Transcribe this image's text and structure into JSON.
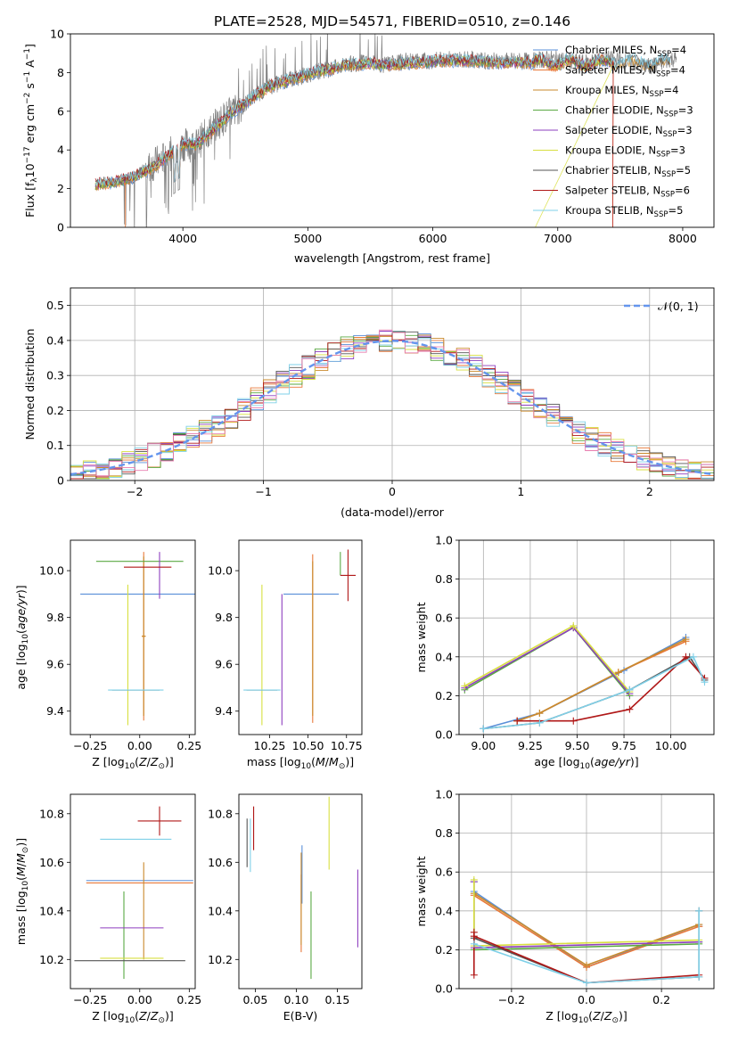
{
  "figure_title": "PLATE=2528, MJD=54571, FIBERID=0510, z=0.146",
  "colors": {
    "chabrier_miles": "#5a8fd8",
    "salpeter_miles": "#e8793a",
    "kroupa_miles": "#c98a2c",
    "chabrier_elodie": "#5aa843",
    "salpeter_elodie": "#8e3fbf",
    "kroupa_elodie": "#d8df40",
    "chabrier_stelib": "#555555",
    "salpeter_stelib": "#b01818",
    "kroupa_stelib": "#7fd0e8",
    "normal": "#6495ed",
    "grid": "#b0b0b0"
  },
  "chart_data": [
    {
      "id": "spectrum",
      "type": "line",
      "xlabel": "wavelength [Angstrom, rest frame]",
      "ylabel": "Flux [f_λ10^-17 erg cm^-2 s^-1 A^-1]",
      "xlim": [
        3100,
        8250
      ],
      "ylim": [
        0,
        10
      ],
      "xticks": [
        4000,
        5000,
        6000,
        7000,
        8000
      ],
      "yticks": [
        0,
        2,
        4,
        6,
        8,
        10
      ],
      "grid": false,
      "legend": "top-right",
      "legend_entries": [
        {
          "label": "Chabrier MILES, N",
          "sub": "SSP",
          "suffix": "=4",
          "color_key": "chabrier_miles"
        },
        {
          "label": "Salpeter MILES, N",
          "sub": "SSP",
          "suffix": "=4",
          "color_key": "salpeter_miles"
        },
        {
          "label": "Kroupa MILES, N",
          "sub": "SSP",
          "suffix": "=4",
          "color_key": "kroupa_miles"
        },
        {
          "label": "Chabrier ELODIE, N",
          "sub": "SSP",
          "suffix": "=3",
          "color_key": "chabrier_elodie"
        },
        {
          "label": "Salpeter ELODIE, N",
          "sub": "SSP",
          "suffix": "=3",
          "color_key": "salpeter_elodie"
        },
        {
          "label": "Kroupa ELODIE, N",
          "sub": "SSP",
          "suffix": "=3",
          "color_key": "kroupa_elodie"
        },
        {
          "label": "Chabrier STELIB, N",
          "sub": "SSP",
          "suffix": "=5",
          "color_key": "chabrier_stelib"
        },
        {
          "label": "Salpeter STELIB, N",
          "sub": "SSP",
          "suffix": "=6",
          "color_key": "salpeter_stelib"
        },
        {
          "label": "Kroupa STELIB, N",
          "sub": "SSP",
          "suffix": "=5",
          "color_key": "kroupa_stelib"
        }
      ],
      "data_curve": {
        "color": "#808080",
        "x": [
          3300,
          3400,
          3500,
          3600,
          3700,
          3800,
          3900,
          4000,
          4100,
          4200,
          4300,
          4400,
          4500,
          4600,
          4700,
          4800,
          4900,
          5000,
          5100,
          5200,
          5300,
          5400,
          5500,
          5600,
          5700,
          5800,
          5900,
          6000,
          6100,
          6200,
          6300,
          6400,
          6500,
          6600,
          6700,
          6800,
          6900,
          7000,
          7100,
          7200,
          7300,
          7400,
          7500,
          7600,
          7700,
          7800,
          7900
        ],
        "y": [
          2.2,
          2.3,
          2.4,
          2.6,
          3.0,
          3.4,
          3.8,
          4.3,
          4.2,
          4.9,
          5.5,
          6.0,
          6.4,
          6.9,
          7.3,
          7.5,
          7.7,
          7.9,
          8.1,
          8.2,
          8.4,
          8.5,
          8.5,
          8.4,
          8.5,
          8.6,
          8.6,
          8.6,
          8.7,
          8.7,
          8.7,
          8.6,
          8.6,
          8.6,
          8.6,
          8.6,
          8.7,
          8.7,
          8.6,
          8.5,
          8.6,
          8.7,
          8.6,
          8.5,
          8.3,
          8.4,
          8.7
        ]
      },
      "model_curve": {
        "x": [
          3300,
          3400,
          3500,
          3600,
          3700,
          3800,
          3900,
          4000,
          4100,
          4200,
          4300,
          4400,
          4500,
          4600,
          4700,
          4800,
          4900,
          5000,
          5100,
          5200,
          5300,
          5400,
          5500,
          5600,
          5700,
          5800,
          5900,
          6000,
          6100,
          6200,
          6300,
          6400,
          6500,
          6600,
          6700,
          6800
        ],
        "y": [
          2.2,
          2.3,
          2.4,
          2.6,
          2.9,
          3.3,
          3.8,
          4.3,
          4.3,
          4.8,
          5.4,
          6.0,
          6.4,
          6.9,
          7.3,
          7.5,
          7.7,
          7.9,
          8.1,
          8.2,
          8.4,
          8.4,
          8.5,
          8.4,
          8.4,
          8.5,
          8.5,
          8.6,
          8.6,
          8.6,
          8.6,
          8.6,
          8.5,
          8.5,
          8.5,
          8.5
        ]
      }
    },
    {
      "id": "residuals",
      "type": "histogram",
      "xlabel": "(data-model)/error",
      "ylabel": "Normed distribution",
      "xlim": [
        -2.5,
        2.5
      ],
      "ylim": [
        0,
        0.55
      ],
      "xticks": [
        -2,
        -1,
        0,
        1,
        2
      ],
      "yticks": [
        0.0,
        0.1,
        0.2,
        0.3,
        0.4,
        0.5
      ],
      "grid": true,
      "legend": "top-right",
      "legend_entries": [
        {
          "label": "𝒩(0, 1)",
          "color_key": "normal"
        }
      ],
      "bin_edges_start": -2.5,
      "bin_width": 0.1
    },
    {
      "id": "age_vs_Z",
      "type": "errorbar",
      "xlabel": "Z [log10(Z/Z⊙)]",
      "ylabel": "age [log10(age/yr)]",
      "xlim": [
        -0.35,
        0.28
      ],
      "ylim": [
        9.3,
        10.13
      ],
      "xticks": [
        -0.25,
        0.0,
        0.25
      ],
      "xticklabels": [
        "−0.25",
        "0.00",
        "0.25"
      ],
      "yticks": [
        9.4,
        9.6,
        9.8,
        10.0
      ],
      "yticklabels": [
        "9.4",
        "9.6",
        "9.8",
        "10.0"
      ],
      "grid": false,
      "points": [
        {
          "color_key": "chabrier_miles",
          "x": 0.0,
          "xerr": 0.3,
          "y": 9.9,
          "yerr": 0.0
        },
        {
          "color_key": "salpeter_miles",
          "x": 0.02,
          "xerr": 0.01,
          "y": 9.72,
          "yerr": 0.36
        },
        {
          "color_key": "kroupa_miles",
          "x": 0.02,
          "xerr": 0.01,
          "y": 9.72,
          "yerr": 0.34
        },
        {
          "color_key": "chabrier_elodie",
          "x": 0.0,
          "xerr": 0.22,
          "y": 10.04,
          "yerr": 0.0
        },
        {
          "color_key": "salpeter_elodie",
          "x": 0.1,
          "xerr": 0.0,
          "y": 9.98,
          "yerr": 0.1
        },
        {
          "color_key": "kroupa_elodie",
          "x": -0.06,
          "xerr": 0.0,
          "y": 9.64,
          "yerr": 0.3
        },
        {
          "color_key": "chabrier_stelib",
          "x": -0.02,
          "xerr": 0.12,
          "y": 9.49,
          "yerr": 0.0
        },
        {
          "color_key": "salpeter_stelib",
          "x": 0.04,
          "xerr": 0.12,
          "y": 10.015,
          "yerr": 0.0
        },
        {
          "color_key": "kroupa_stelib",
          "x": -0.02,
          "xerr": 0.14,
          "y": 9.49,
          "yerr": 0.0
        }
      ]
    },
    {
      "id": "age_vs_mass",
      "type": "errorbar",
      "xlabel": "mass [log10(M/M⊙)]",
      "ylabel": "",
      "xlim": [
        10.05,
        10.85
      ],
      "ylim": [
        9.3,
        10.13
      ],
      "xticks": [
        10.25,
        10.5,
        10.75
      ],
      "xticklabels": [
        "10.25",
        "10.50",
        "10.75"
      ],
      "yticks": [
        9.4,
        9.6,
        9.8,
        10.0
      ],
      "yticklabels": [
        "9.4",
        "9.6",
        "9.8",
        "10.0"
      ],
      "grid": false,
      "points": [
        {
          "color_key": "chabrier_miles",
          "x": 10.52,
          "xerr": 0.18,
          "y": 9.9,
          "yerr": 0.0
        },
        {
          "color_key": "salpeter_miles",
          "x": 10.53,
          "xerr": 0.0,
          "y": 9.71,
          "yerr": 0.36
        },
        {
          "color_key": "kroupa_miles",
          "x": 10.53,
          "xerr": 0.0,
          "y": 9.71,
          "yerr": 0.33
        },
        {
          "color_key": "chabrier_elodie",
          "x": 10.71,
          "xerr": 0.0,
          "y": 10.03,
          "yerr": 0.05
        },
        {
          "color_key": "salpeter_elodie",
          "x": 10.33,
          "xerr": 0.0,
          "y": 9.62,
          "yerr": 0.28
        },
        {
          "color_key": "kroupa_elodie",
          "x": 10.2,
          "xerr": 0.0,
          "y": 9.64,
          "yerr": 0.3
        },
        {
          "color_key": "chabrier_stelib",
          "x": 10.2,
          "xerr": 0.1,
          "y": 9.49,
          "yerr": 0.0
        },
        {
          "color_key": "salpeter_stelib",
          "x": 10.76,
          "xerr": 0.05,
          "y": 9.98,
          "yerr": 0.11
        },
        {
          "color_key": "kroupa_stelib",
          "x": 10.2,
          "xerr": 0.12,
          "y": 9.49,
          "yerr": 0.0
        }
      ]
    },
    {
      "id": "massweight_vs_age",
      "type": "line",
      "xlabel": "age [log10(age/yr)]",
      "ylabel": "mass weight",
      "xlim": [
        8.87,
        10.23
      ],
      "ylim": [
        0,
        1.0
      ],
      "xticks": [
        9.0,
        9.25,
        9.5,
        9.75,
        10.0
      ],
      "xticklabels": [
        "9.00",
        "9.25",
        "9.50",
        "9.75",
        "10.00"
      ],
      "yticks": [
        0.0,
        0.2,
        0.4,
        0.6,
        0.8,
        1.0
      ],
      "yticklabels": [
        "0.0",
        "0.2",
        "0.4",
        "0.6",
        "0.8",
        "1.0"
      ],
      "grid": true,
      "series": [
        {
          "color_key": "chabrier_miles",
          "x": [
            9.0,
            9.3,
            9.75,
            10.08
          ],
          "y": [
            0.03,
            0.11,
            0.33,
            0.5
          ]
        },
        {
          "color_key": "salpeter_miles",
          "x": [
            9.18,
            9.3,
            9.72,
            10.08
          ],
          "y": [
            0.07,
            0.11,
            0.32,
            0.48
          ]
        },
        {
          "color_key": "kroupa_miles",
          "x": [
            9.18,
            9.3,
            9.72,
            10.08
          ],
          "y": [
            0.07,
            0.11,
            0.32,
            0.49
          ]
        },
        {
          "color_key": "chabrier_elodie",
          "x": [
            8.9,
            9.48,
            9.78
          ],
          "y": [
            0.23,
            0.55,
            0.2
          ]
        },
        {
          "color_key": "salpeter_elodie",
          "x": [
            8.9,
            9.48,
            9.78
          ],
          "y": [
            0.24,
            0.55,
            0.21
          ]
        },
        {
          "color_key": "kroupa_elodie",
          "x": [
            8.9,
            9.48,
            9.78
          ],
          "y": [
            0.25,
            0.56,
            0.22
          ]
        },
        {
          "color_key": "chabrier_stelib",
          "x": [
            9.0,
            9.3,
            9.78,
            10.1,
            10.18
          ],
          "y": [
            0.03,
            0.06,
            0.23,
            0.4,
            0.28
          ]
        },
        {
          "color_key": "salpeter_stelib",
          "x": [
            9.18,
            9.48,
            9.78,
            10.08,
            10.18
          ],
          "y": [
            0.07,
            0.07,
            0.13,
            0.4,
            0.29
          ]
        },
        {
          "color_key": "kroupa_stelib",
          "x": [
            9.0,
            9.3,
            9.78,
            10.12,
            10.18
          ],
          "y": [
            0.03,
            0.06,
            0.23,
            0.4,
            0.27
          ]
        }
      ]
    },
    {
      "id": "mass_vs_Z",
      "type": "errorbar",
      "xlabel": "Z [log10(Z/Z⊙)]",
      "ylabel": "mass [log10(M/M⊙)]",
      "xlim": [
        -0.35,
        0.28
      ],
      "ylim": [
        10.08,
        10.88
      ],
      "xticks": [
        -0.25,
        0.0,
        0.25
      ],
      "xticklabels": [
        "−0.25",
        "0.00",
        "0.25"
      ],
      "yticks": [
        10.2,
        10.4,
        10.6,
        10.8
      ],
      "yticklabels": [
        "10.2",
        "10.4",
        "10.6",
        "10.8"
      ],
      "grid": false,
      "points": [
        {
          "color_key": "chabrier_miles",
          "x": 0.0,
          "xerr": 0.27,
          "y": 10.525,
          "yerr": 0.0
        },
        {
          "color_key": "salpeter_miles",
          "x": 0.0,
          "xerr": 0.27,
          "y": 10.515,
          "yerr": 0.0
        },
        {
          "color_key": "kroupa_miles",
          "x": 0.02,
          "xerr": 0.0,
          "y": 10.4,
          "yerr": 0.2
        },
        {
          "color_key": "chabrier_elodie",
          "x": -0.08,
          "xerr": 0.0,
          "y": 10.3,
          "yerr": 0.18
        },
        {
          "color_key": "salpeter_elodie",
          "x": -0.04,
          "xerr": 0.16,
          "y": 10.33,
          "yerr": 0.0
        },
        {
          "color_key": "kroupa_elodie",
          "x": -0.04,
          "xerr": 0.16,
          "y": 10.205,
          "yerr": 0.0
        },
        {
          "color_key": "chabrier_stelib",
          "x": -0.05,
          "xerr": 0.28,
          "y": 10.195,
          "yerr": 0.0
        },
        {
          "color_key": "salpeter_stelib",
          "x": 0.1,
          "xerr": 0.11,
          "y": 10.77,
          "yerr": 0.06
        },
        {
          "color_key": "kroupa_stelib",
          "x": -0.02,
          "xerr": 0.18,
          "y": 10.695,
          "yerr": 0.0
        }
      ]
    },
    {
      "id": "mass_vs_ebv",
      "type": "errorbar",
      "xlabel": "E(B-V)",
      "ylabel": "",
      "xlim": [
        0.03,
        0.18
      ],
      "ylim": [
        10.08,
        10.88
      ],
      "xticks": [
        0.05,
        0.1,
        0.15
      ],
      "xticklabels": [
        "0.05",
        "0.10",
        "0.15"
      ],
      "yticks": [
        10.2,
        10.4,
        10.6,
        10.8
      ],
      "yticklabels": [
        "10.2",
        "10.4",
        "10.6",
        "10.8"
      ],
      "grid": false,
      "points": [
        {
          "color_key": "chabrier_miles",
          "x": 0.107,
          "xerr": 0.0,
          "y": 10.55,
          "yerr": 0.12
        },
        {
          "color_key": "salpeter_miles",
          "x": 0.106,
          "xerr": 0.0,
          "y": 10.39,
          "yerr": 0.16
        },
        {
          "color_key": "kroupa_miles",
          "x": 0.106,
          "xerr": 0.0,
          "y": 10.45,
          "yerr": 0.19
        },
        {
          "color_key": "chabrier_elodie",
          "x": 0.118,
          "xerr": 0.0,
          "y": 10.3,
          "yerr": 0.18
        },
        {
          "color_key": "salpeter_elodie",
          "x": 0.175,
          "xerr": 0.0,
          "y": 10.41,
          "yerr": 0.16
        },
        {
          "color_key": "kroupa_elodie",
          "x": 0.14,
          "xerr": 0.0,
          "y": 10.72,
          "yerr": 0.15
        },
        {
          "color_key": "chabrier_stelib",
          "x": 0.04,
          "xerr": 0.0,
          "y": 10.68,
          "yerr": 0.1
        },
        {
          "color_key": "salpeter_stelib",
          "x": 0.048,
          "xerr": 0.0,
          "y": 10.74,
          "yerr": 0.09
        },
        {
          "color_key": "kroupa_stelib",
          "x": 0.044,
          "xerr": 0.0,
          "y": 10.67,
          "yerr": 0.11
        }
      ]
    },
    {
      "id": "massweight_vs_Z",
      "type": "line",
      "xlabel": "Z [log10(Z/Z⊙)]",
      "ylabel": "mass weight",
      "xlim": [
        -0.34,
        0.34
      ],
      "ylim": [
        0,
        1.0
      ],
      "xticks": [
        -0.2,
        0.0,
        0.2
      ],
      "xticklabels": [
        "−0.2",
        "0.0",
        "0.2"
      ],
      "yticks": [
        0.0,
        0.2,
        0.4,
        0.6,
        0.8,
        1.0
      ],
      "yticklabels": [
        "0.0",
        "0.2",
        "0.4",
        "0.6",
        "0.8",
        "1.0"
      ],
      "grid": true,
      "series": [
        {
          "color_key": "chabrier_miles",
          "x": [
            -0.3,
            0.0,
            0.3,
            0.3
          ],
          "y": [
            0.5,
            0.11,
            0.33,
            0.32
          ]
        },
        {
          "color_key": "salpeter_miles",
          "x": [
            -0.3,
            0.0,
            0.3,
            0.3
          ],
          "y": [
            0.48,
            0.11,
            0.32,
            0.32
          ]
        },
        {
          "color_key": "kroupa_miles",
          "x": [
            -0.3,
            0.0,
            0.3
          ],
          "y": [
            0.49,
            0.12,
            0.33
          ]
        },
        {
          "color_key": "chabrier_elodie",
          "x": [
            -0.3,
            -0.3,
            0.3,
            0.3
          ],
          "y": [
            0.55,
            0.2,
            0.23,
            0.24
          ]
        },
        {
          "color_key": "salpeter_elodie",
          "x": [
            -0.3,
            -0.3,
            0.3
          ],
          "y": [
            0.55,
            0.21,
            0.24
          ]
        },
        {
          "color_key": "kroupa_elodie",
          "x": [
            -0.3,
            -0.3,
            0.3
          ],
          "y": [
            0.56,
            0.22,
            0.25
          ]
        },
        {
          "color_key": "chabrier_stelib",
          "x": [
            -0.3,
            0.0,
            0.3,
            0.3
          ],
          "y": [
            0.26,
            0.03,
            0.06,
            0.4
          ]
        },
        {
          "color_key": "salpeter_stelib",
          "x": [
            -0.3,
            -0.3,
            -0.3,
            0.0,
            0.3
          ],
          "y": [
            0.29,
            0.07,
            0.27,
            0.03,
            0.07
          ]
        },
        {
          "color_key": "kroupa_stelib",
          "x": [
            -0.3,
            0.0,
            0.3,
            0.3
          ],
          "y": [
            0.23,
            0.03,
            0.06,
            0.4
          ]
        }
      ]
    }
  ]
}
